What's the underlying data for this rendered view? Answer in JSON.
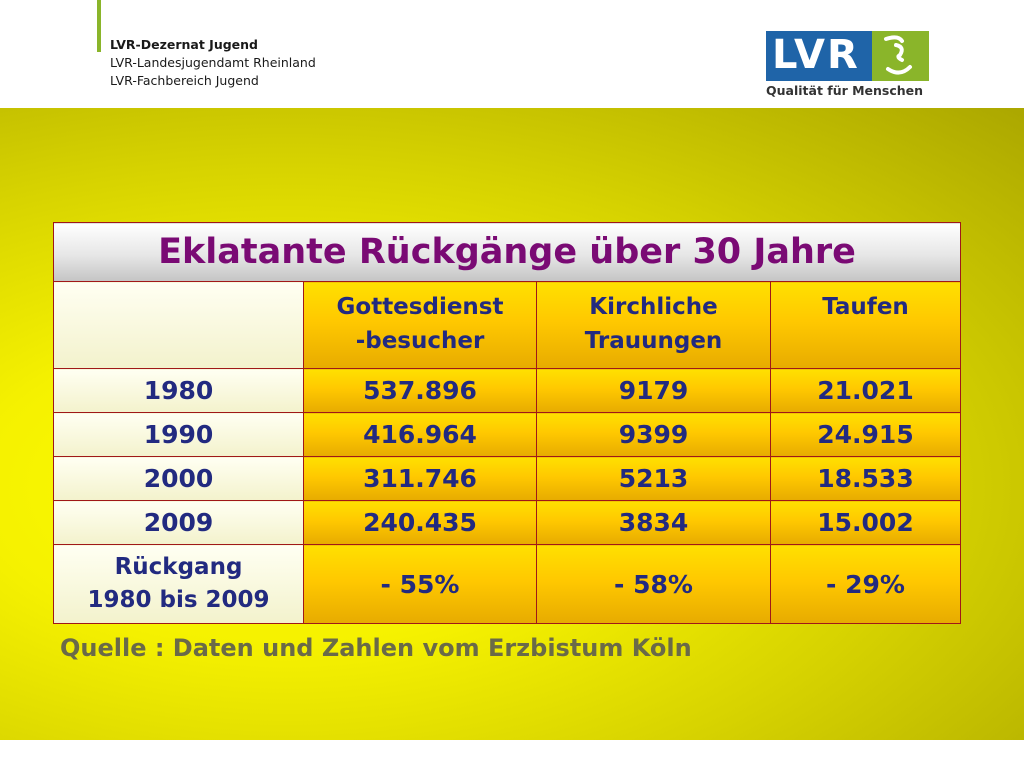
{
  "header": {
    "org_line1": "LVR-Dezernat Jugend",
    "org_line2": "LVR-Landesjugendamt Rheinland",
    "org_line3": "LVR-Fachbereich Jugend",
    "logo_text": "LVR",
    "logo_tagline": "Qualität für Menschen",
    "colors": {
      "brand_blue": "#1f64a8",
      "brand_green": "#8ab52a"
    }
  },
  "table": {
    "title": "Eklatante Rückgänge über 30 Jahre",
    "columns": {
      "col1_line1": "Gottesdienst",
      "col1_line2": "-besucher",
      "col2_line1": "Kirchliche",
      "col2_line2": "Trauungen",
      "col3": "Taufen"
    },
    "rows": [
      {
        "label": "1980",
        "v1": "537.896",
        "v2": "9179",
        "v3": "21.021"
      },
      {
        "label": "1990",
        "v1": "416.964",
        "v2": "9399",
        "v3": "24.915"
      },
      {
        "label": "2000",
        "v1": "311.746",
        "v2": "5213",
        "v3": "18.533"
      },
      {
        "label": "2009",
        "v1": "240.435",
        "v2": "3834",
        "v3": "15.002"
      }
    ],
    "decline": {
      "label_line1": "Rückgang",
      "label_line2": "1980 bis 2009",
      "v1": "- 55%",
      "v2": "- 58%",
      "v3": "- 29%"
    }
  },
  "source": "Quelle : Daten und Zahlen vom Erzbistum Köln"
}
